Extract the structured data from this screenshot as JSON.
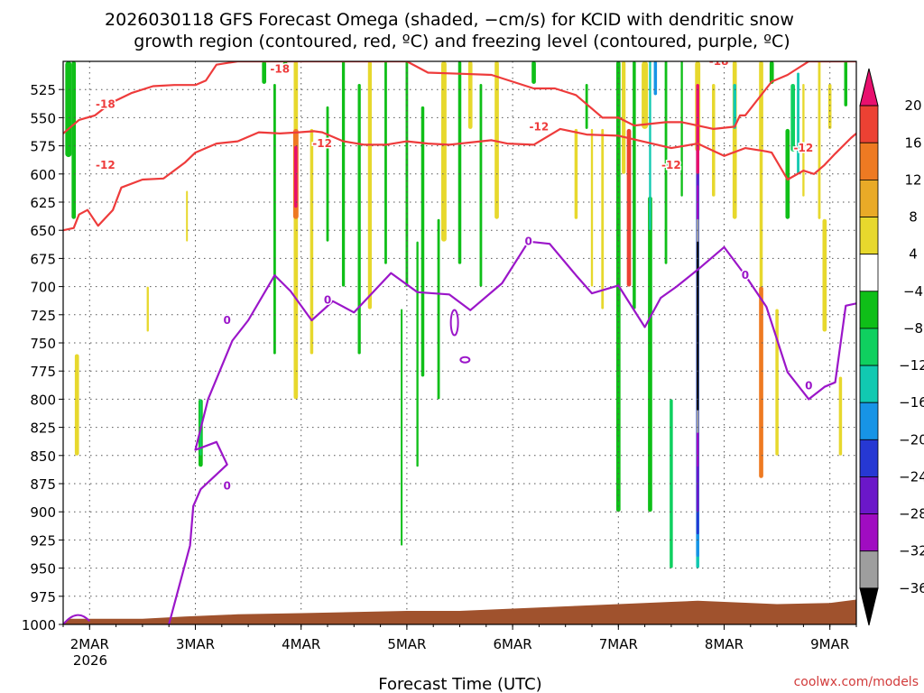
{
  "chart_data": {
    "type": "heatmap",
    "title": [
      "2026030118 GFS Forecast Omega (shaded, −cm/s) for KCID with dendritic snow",
      "growth region (contoured, red, ºC) and freezing level (contoured, purple, ºC)"
    ],
    "xlabel": "Forecast Time (UTC)",
    "credit": "coolwx.com/models",
    "x_ticks": [
      "2MAR",
      "3MAR",
      "4MAR",
      "5MAR",
      "6MAR",
      "7MAR",
      "8MAR",
      "9MAR"
    ],
    "x_tick_sub": "2026",
    "x_range_days": [
      -0.25,
      7.25
    ],
    "y_ticks": [
      525,
      550,
      575,
      600,
      625,
      650,
      675,
      700,
      725,
      750,
      775,
      800,
      825,
      850,
      875,
      900,
      925,
      950,
      975,
      1000
    ],
    "y_range_hpa": [
      500,
      1000
    ],
    "colorbar": {
      "labels": [
        "20",
        "16",
        "12",
        "8",
        "4",
        "−4",
        "−8",
        "−12",
        "−16",
        "−20",
        "−24",
        "−28",
        "−32",
        "−36"
      ],
      "colors": [
        "#e8106e",
        "#ec4133",
        "#ee7a22",
        "#e9aa27",
        "#e7d82d",
        "#ffffff",
        "#0fbf18",
        "#0fd05f",
        "#11c9b1",
        "#1794e6",
        "#2638d3",
        "#6b17c9",
        "#a00cc1",
        "#9e9e9e",
        "#000000"
      ]
    },
    "colors": {
      "red": "#ee3b3b",
      "purple": "#9b16c9",
      "ground": "#a0522d"
    },
    "contour_labels": {
      "minus18": "-18",
      "minus12": "-12",
      "zero": "0"
    },
    "series": [
      {
        "name": "-12",
        "color": "#ee3b3b",
        "points": [
          [
            -0.25,
            650
          ],
          [
            -0.15,
            648
          ],
          [
            -0.1,
            636
          ],
          [
            -0.02,
            632
          ],
          [
            0.08,
            646
          ],
          [
            0.22,
            632
          ],
          [
            0.3,
            612
          ],
          [
            0.5,
            605
          ],
          [
            0.7,
            604
          ],
          [
            0.9,
            590
          ],
          [
            1.0,
            581
          ],
          [
            1.2,
            573
          ],
          [
            1.4,
            571
          ],
          [
            1.6,
            563
          ],
          [
            1.8,
            564
          ],
          [
            1.98,
            563
          ],
          [
            2.12,
            562
          ],
          [
            2.2,
            563
          ],
          [
            2.4,
            571
          ],
          [
            2.6,
            574
          ],
          [
            2.8,
            574
          ],
          [
            3.0,
            571
          ],
          [
            3.2,
            573
          ],
          [
            3.4,
            574
          ],
          [
            3.6,
            572
          ],
          [
            3.8,
            570
          ],
          [
            3.95,
            573
          ],
          [
            4.2,
            574
          ],
          [
            4.45,
            560
          ],
          [
            4.7,
            565
          ],
          [
            5.0,
            566
          ],
          [
            5.5,
            577
          ],
          [
            5.75,
            573
          ],
          [
            6.0,
            584
          ],
          [
            6.2,
            577
          ],
          [
            6.4,
            580
          ],
          [
            6.45,
            581
          ],
          [
            6.6,
            605
          ],
          [
            6.75,
            597
          ],
          [
            6.85,
            600
          ],
          [
            6.95,
            592
          ],
          [
            7.05,
            582
          ],
          [
            7.2,
            568
          ],
          [
            7.25,
            564
          ]
        ]
      },
      {
        "name": "-18",
        "color": "#ee3b3b",
        "points": [
          [
            -0.25,
            564
          ],
          [
            -0.1,
            552
          ],
          [
            0.05,
            548
          ],
          [
            0.2,
            537
          ],
          [
            0.4,
            528
          ],
          [
            0.6,
            522
          ],
          [
            0.8,
            521
          ],
          [
            1.0,
            521
          ],
          [
            1.1,
            517
          ],
          [
            1.2,
            503
          ],
          [
            1.4,
            500
          ],
          [
            1.6,
            500
          ],
          [
            1.8,
            500
          ],
          [
            2.0,
            500
          ],
          [
            2.2,
            500
          ],
          [
            2.4,
            500
          ],
          [
            2.6,
            500
          ],
          [
            2.8,
            500
          ],
          [
            3.0,
            500
          ],
          [
            3.2,
            510
          ],
          [
            3.5,
            511
          ],
          [
            3.8,
            512
          ],
          [
            4.0,
            518
          ],
          [
            4.2,
            524
          ],
          [
            4.4,
            524
          ],
          [
            4.6,
            530
          ],
          [
            4.85,
            550
          ],
          [
            5.0,
            550
          ],
          [
            5.15,
            557
          ],
          [
            5.25,
            556
          ],
          [
            5.45,
            554
          ],
          [
            5.6,
            554
          ],
          [
            5.9,
            560
          ],
          [
            6.1,
            558
          ],
          [
            6.15,
            548
          ],
          [
            6.2,
            548
          ],
          [
            6.45,
            518
          ],
          [
            6.6,
            512
          ],
          [
            6.7,
            506
          ],
          [
            6.8,
            500
          ],
          [
            7.0,
            500
          ],
          [
            7.25,
            500
          ]
        ]
      },
      {
        "name": "0",
        "color": "#9b16c9",
        "points": [
          [
            0.75,
            1000
          ],
          [
            0.85,
            965
          ],
          [
            0.95,
            930
          ],
          [
            0.98,
            895
          ],
          [
            1.05,
            880
          ],
          [
            1.3,
            858
          ],
          [
            1.2,
            838
          ],
          [
            1.0,
            845
          ],
          [
            1.12,
            800
          ],
          [
            1.35,
            748
          ],
          [
            1.5,
            730
          ],
          [
            1.75,
            690
          ],
          [
            1.9,
            704
          ],
          [
            2.1,
            730
          ],
          [
            2.3,
            713
          ],
          [
            2.5,
            723
          ],
          [
            2.85,
            688
          ],
          [
            3.1,
            705
          ],
          [
            3.4,
            707
          ],
          [
            3.6,
            721
          ],
          [
            3.9,
            697
          ],
          [
            4.15,
            660
          ],
          [
            4.35,
            662
          ],
          [
            4.6,
            690
          ],
          [
            4.75,
            706
          ],
          [
            5.0,
            699
          ],
          [
            5.25,
            736
          ],
          [
            5.4,
            710
          ],
          [
            5.55,
            700
          ],
          [
            5.75,
            685
          ],
          [
            6.0,
            665
          ],
          [
            6.2,
            690
          ],
          [
            6.4,
            718
          ],
          [
            6.6,
            776
          ],
          [
            6.8,
            800
          ],
          [
            6.95,
            789
          ],
          [
            7.05,
            785
          ],
          [
            7.15,
            717
          ],
          [
            7.25,
            715
          ]
        ]
      }
    ]
  }
}
